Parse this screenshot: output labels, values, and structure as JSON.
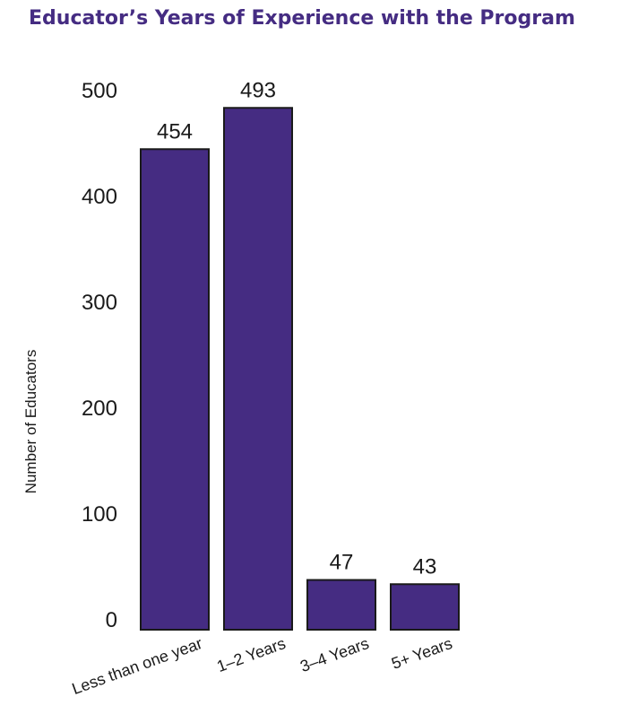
{
  "title": "Educator’s Years of Experience with the Program",
  "chart_data": {
    "type": "bar",
    "title": "Educator’s Years of Experience with the Program",
    "xlabel": "",
    "ylabel": "Number of Educators",
    "categories": [
      "Less than one year",
      "1–2 Years",
      "3–4 Years",
      "5+ Years"
    ],
    "values": [
      454,
      493,
      47,
      43
    ],
    "data_labels": [
      "454",
      "493",
      "47",
      "43"
    ],
    "yticks": [
      0,
      100,
      200,
      300,
      400,
      500
    ],
    "ytick_labels": [
      "0",
      "100",
      "200",
      "300",
      "400",
      "500"
    ],
    "ylim": [
      0,
      500
    ],
    "grid": false,
    "legend": "none",
    "bar_color": "#452c82",
    "title_color": "#452c82"
  }
}
